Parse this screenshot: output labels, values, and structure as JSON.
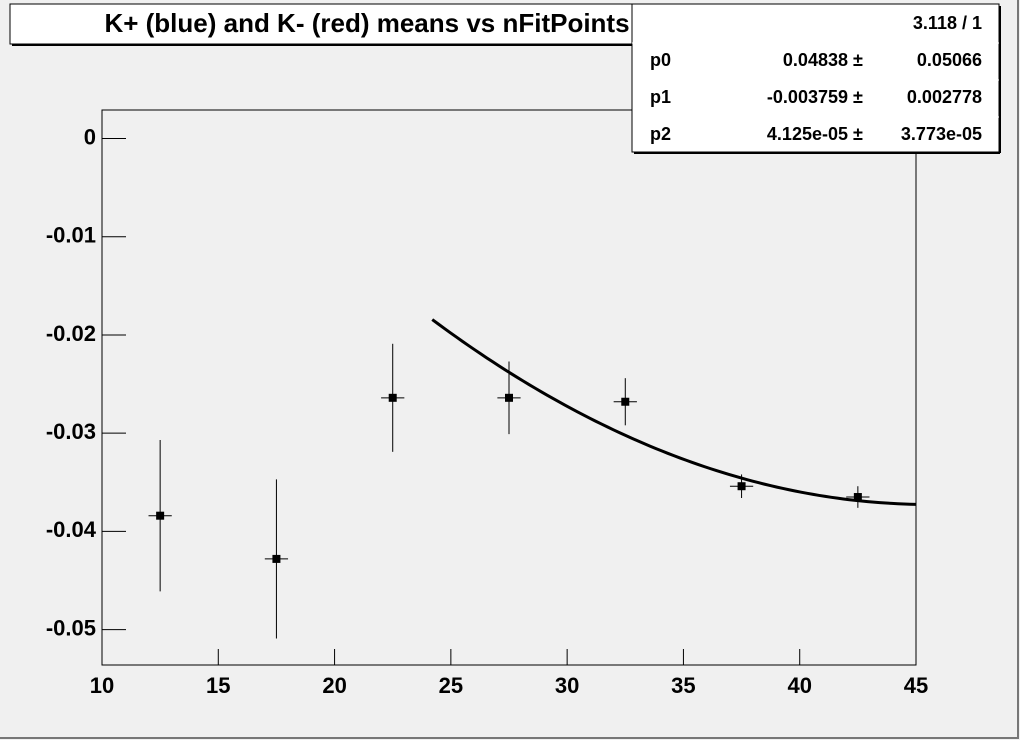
{
  "chart_data": {
    "type": "scatter",
    "title": "K+ (blue) and K- (red) means vs nFitPoints",
    "series": [
      {
        "color": "#000000",
        "x": [
          12.5,
          17.5,
          22.5,
          27.5,
          32.5,
          37.5,
          42.5
        ],
        "values": [
          -0.0384,
          -0.0428,
          -0.0264,
          -0.0264,
          -0.0268,
          -0.0354,
          -0.0365
        ],
        "errors": [
          0.0077,
          0.0081,
          0.0055,
          0.0037,
          0.0024,
          0.0012,
          0.0011
        ],
        "xerr": [
          0.5,
          0.5,
          0.5,
          0.5,
          0.5,
          0.5,
          0.5
        ]
      }
    ],
    "fit": {
      "color": "#000000",
      "xmin": 24.2,
      "xmax": 45
    },
    "xlim": [
      10,
      45
    ],
    "xticks": [
      10,
      15,
      20,
      25,
      30,
      35,
      40,
      45
    ],
    "ylim": [
      -0.0536,
      0.0029
    ],
    "yticks": [
      0,
      -0.01,
      -0.02,
      -0.03,
      -0.04,
      -0.05
    ],
    "stats": {
      "chi2_ndf": "3.118 / 1",
      "separator": "±",
      "params": [
        {
          "name": "p0",
          "value": {
            "value": 0.04838,
            "label": "0.04838"
          },
          "error": {
            "value": 0.05066,
            "label": "0.05066"
          }
        },
        {
          "name": "p1",
          "value": {
            "value": -0.003759,
            "label": "-0.003759"
          },
          "error": {
            "value": 0.002778,
            "label": "0.002778"
          }
        },
        {
          "name": "p2",
          "value": {
            "value": 4.125e-05,
            "label": "4.125e-05"
          },
          "error": {
            "value": 3.773e-05,
            "label": "3.773e-05"
          }
        }
      ]
    }
  }
}
